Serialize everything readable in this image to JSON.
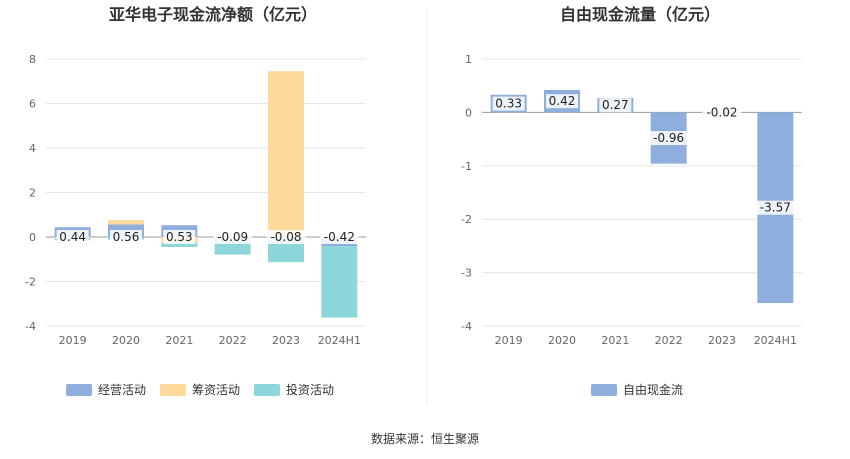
{
  "source": "数据来源：恒生聚源",
  "chart_data": [
    {
      "type": "bar",
      "stacked": true,
      "title": "亚华电子现金流净额（亿元）",
      "categories": [
        "2019",
        "2020",
        "2021",
        "2022",
        "2023",
        "2024H1"
      ],
      "ylim": [
        -4,
        8
      ],
      "yticks": [
        -4,
        -2,
        0,
        2,
        4,
        6,
        8
      ],
      "grid": true,
      "legend_position": "bottom",
      "series": [
        {
          "name": "经营活动",
          "color": "#8eaedd",
          "values": [
            0.44,
            0.56,
            0.53,
            -0.09,
            -0.08,
            -0.42
          ]
        },
        {
          "name": "筹资活动",
          "color": "#fdd99b",
          "values": [
            -0.05,
            0.2,
            -0.25,
            0.0,
            7.45,
            0.0
          ]
        },
        {
          "name": "投资活动",
          "color": "#8dd7db",
          "values": [
            -0.1,
            -0.12,
            -0.2,
            -0.7,
            -1.05,
            -3.2
          ]
        }
      ],
      "data_labels": [
        "0.44",
        "0.56",
        "0.53",
        "-0.09",
        "-0.08",
        "-0.42"
      ]
    },
    {
      "type": "bar",
      "title": "自由现金流量（亿元）",
      "categories": [
        "2019",
        "2020",
        "2021",
        "2022",
        "2023",
        "2024H1"
      ],
      "ylim": [
        -4,
        1
      ],
      "yticks": [
        -4,
        -3,
        -2,
        -1,
        0,
        1
      ],
      "grid": true,
      "legend_position": "bottom",
      "series": [
        {
          "name": "自由现金流",
          "color": "#8eaedd",
          "values": [
            0.33,
            0.42,
            0.27,
            -0.96,
            -0.02,
            -3.57
          ]
        }
      ],
      "data_labels": [
        "0.33",
        "0.42",
        "0.27",
        "-0.96",
        "-0.02",
        "-3.57"
      ]
    }
  ]
}
